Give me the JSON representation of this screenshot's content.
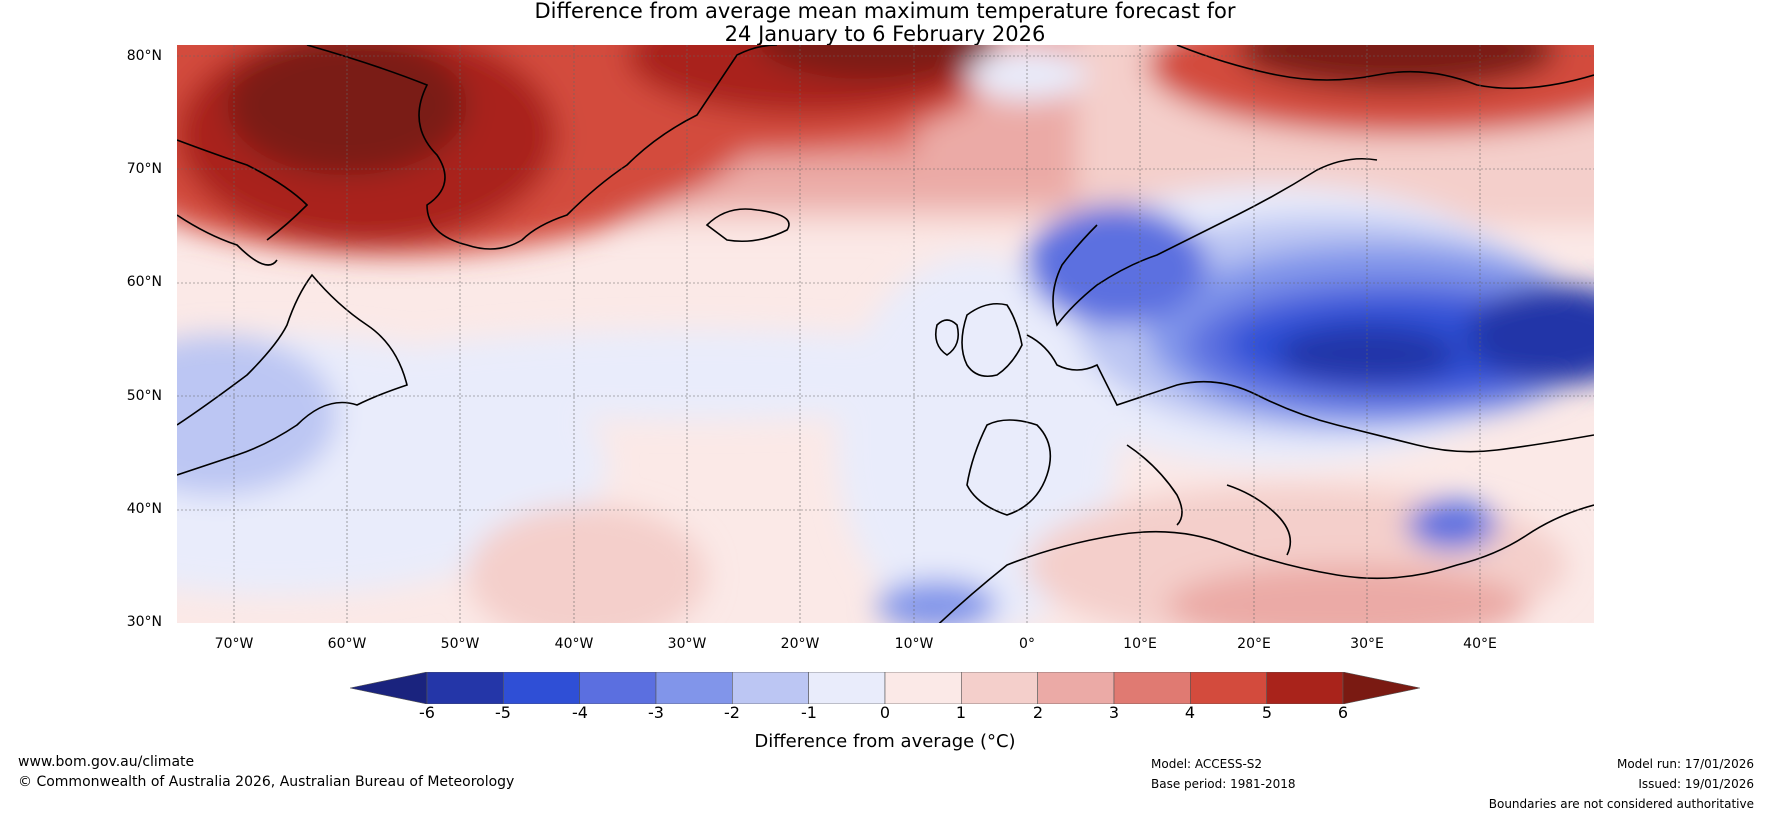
{
  "title": {
    "line1": "Difference from average mean maximum temperature forecast for",
    "line2": "24 January to 6 February 2026"
  },
  "map": {
    "lat_labels": [
      "80°N",
      "70°N",
      "60°N",
      "50°N",
      "40°N",
      "30°N"
    ],
    "lon_labels": [
      "70°W",
      "60°W",
      "50°W",
      "40°W",
      "30°W",
      "20°W",
      "10°W",
      "0°",
      "10°E",
      "20°E",
      "30°E",
      "40°E"
    ],
    "lat_values": [
      80,
      70,
      60,
      50,
      40,
      30
    ],
    "lon_values": [
      -70,
      -60,
      -50,
      -40,
      -30,
      -20,
      -10,
      0,
      10,
      20,
      30,
      40
    ],
    "lat_range": [
      30,
      81
    ],
    "lon_range": [
      -75,
      50
    ]
  },
  "colorbar": {
    "tick_labels": [
      "-6",
      "-5",
      "-4",
      "-3",
      "-2",
      "-1",
      "0",
      "1",
      "2",
      "3",
      "4",
      "5",
      "6"
    ],
    "colors": [
      "#1a237e",
      "#2436a8",
      "#2f4fd6",
      "#5b6fe0",
      "#8195ea",
      "#bcc6f3",
      "#e9ecfb",
      "#fbe9e7",
      "#f4cfcb",
      "#ebaaa6",
      "#e07a72",
      "#d34b3d",
      "#a9231b",
      "#7a1a12"
    ],
    "label": "Difference from average (°C)"
  },
  "footer": {
    "website": "www.bom.gov.au/climate",
    "copyright": "© Commonwealth of Australia 2026, Australian Bureau of Meteorology",
    "model": "Model: ACCESS-S2",
    "base_period": "Base period: 1981-2018",
    "model_run": "Model run: 17/01/2026",
    "issued": "Issued: 19/01/2026",
    "disclaimer": "Boundaries are not considered authoritative"
  }
}
